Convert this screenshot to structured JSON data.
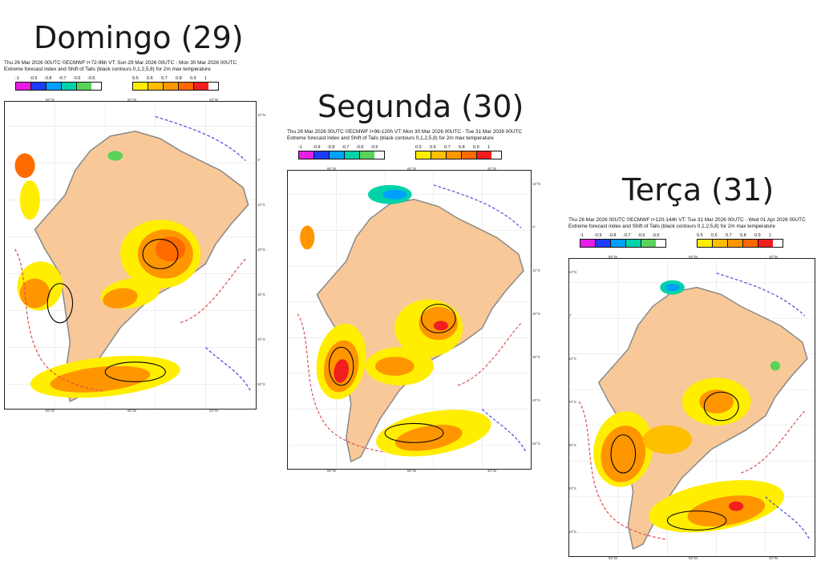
{
  "legend": {
    "neg_ticks": [
      "-1",
      "-0.9",
      "-0.8",
      "-0.7",
      "-0.6",
      "-0.5"
    ],
    "pos_ticks": [
      "0.5",
      "0.6",
      "0.7",
      "0.8",
      "0.9",
      "1"
    ],
    "neg_colors": [
      "#e61ee6",
      "#1e3cff",
      "#00a0ff",
      "#00d2aa",
      "#5ad25a"
    ],
    "pos_colors": [
      "#ffee00",
      "#ffbe00",
      "#ff9600",
      "#ff6a00",
      "#f01e1e"
    ]
  },
  "colors": {
    "land": "#f8c898",
    "ocean": "#ffffff",
    "coast": "#8a8a8a",
    "contour": "#000000",
    "dashed_red": "#e05050",
    "dashed_blue": "#4a4ae0"
  },
  "panels": [
    {
      "title": "Domingo (29)",
      "header_line1": "Thu 26 Mar 2026 00UTC ©ECMWF t+72-96h  VT: Sun 29 Mar 2026 00UTC - Mon 30 Mar 2026 00UTC",
      "header_line2": "Extreme forecast index and Shift of Tails (black contours 0,1,2,5,8) for 2m max temperature",
      "lon_labels": [
        "80°W",
        "60°W",
        "40°W"
      ],
      "lat_labels": [
        "10°N",
        "0°",
        "10°S",
        "20°S",
        "30°S",
        "40°S",
        "50°S"
      ]
    },
    {
      "title": "Segunda (30)",
      "header_line1": "Thu 26 Mar 2026 00UTC ©ECMWF t+96-120h  VT: Mon 30 Mar 2026 00UTC - Tue 31 Mar 2026 00UTC",
      "header_line2": "Extreme forecast index and Shift of Tails (black contours 0,1,2,5,8) for 2m max temperature",
      "lon_labels": [
        "80°W",
        "60°W",
        "40°W"
      ],
      "lat_labels": [
        "10°N",
        "0°",
        "10°S",
        "20°S",
        "30°S",
        "40°S",
        "50°S"
      ]
    },
    {
      "title": "Terça (31)",
      "header_line1": "Thu 26 Mar 2026 00UTC ©ECMWF t+120-144h  VT: Tue 31 Mar 2026 00UTC - Wed 01 Apr 2026 00UTC",
      "header_line2": "Extreme forecast index and Shift of Tails (black contours 0,1,2,5,8) for 2m max temperature",
      "lon_labels": [
        "80°W",
        "60°W",
        "40°W"
      ],
      "lat_labels": [
        "10°N",
        "0°",
        "10°S",
        "20°S",
        "30°S",
        "40°S",
        "50°S"
      ]
    }
  ]
}
